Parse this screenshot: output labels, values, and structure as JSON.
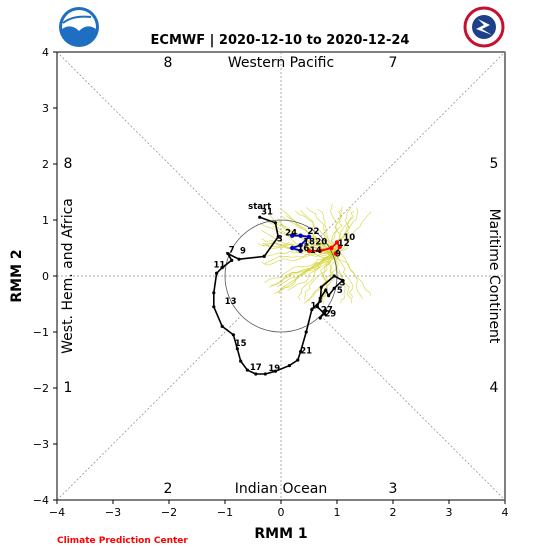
{
  "chart_data": {
    "type": "line",
    "title": "ECMWF | 2020-12-10 to 2020-12-24",
    "xlabel": "RMM 1",
    "ylabel": "RMM 2",
    "xlim": [
      -4,
      4
    ],
    "ylim": [
      -4,
      4
    ],
    "xticks": [
      -4,
      -3,
      -2,
      -1,
      0,
      1,
      2,
      3,
      4
    ],
    "yticks": [
      -4,
      -3,
      -2,
      -1,
      0,
      1,
      2,
      3,
      4
    ],
    "region_labels": {
      "top": "Western Pacific",
      "bottom": "Indian Ocean",
      "left": "West. Hem. and Africa",
      "right": "Maritime Continent"
    },
    "phase_labels": [
      {
        "phase": "1",
        "pos": "left-bottom"
      },
      {
        "phase": "2",
        "pos": "bottom-left"
      },
      {
        "phase": "3",
        "pos": "bottom-right"
      },
      {
        "phase": "4",
        "pos": "right-bottom"
      },
      {
        "phase": "5",
        "pos": "right-top"
      },
      {
        "phase": "6",
        "pos": "top-right"
      },
      {
        "phase": "7",
        "pos": "top-left"
      },
      {
        "phase": "8",
        "pos": "left-top"
      }
    ],
    "unit_circle_radius": 1,
    "observed_track": {
      "color": "#000000",
      "points": [
        [
          -0.38,
          1.05
        ],
        [
          -0.1,
          0.95
        ],
        [
          -0.05,
          0.7
        ],
        [
          -0.3,
          0.35
        ],
        [
          -0.75,
          0.3
        ],
        [
          -0.95,
          0.4
        ],
        [
          -0.88,
          0.28
        ],
        [
          -1.05,
          0.15
        ],
        [
          -1.15,
          0.05
        ],
        [
          -1.2,
          -0.3
        ],
        [
          -1.2,
          -0.55
        ],
        [
          -1.05,
          -0.9
        ],
        [
          -0.85,
          -1.05
        ],
        [
          -0.78,
          -1.3
        ],
        [
          -0.72,
          -1.52
        ],
        [
          -0.6,
          -1.68
        ],
        [
          -0.45,
          -1.75
        ],
        [
          -0.28,
          -1.75
        ],
        [
          -0.1,
          -1.7
        ],
        [
          0.15,
          -1.6
        ],
        [
          0.3,
          -1.5
        ],
        [
          0.35,
          -1.35
        ],
        [
          0.45,
          -1.0
        ],
        [
          0.55,
          -0.6
        ],
        [
          0.7,
          -0.45
        ],
        [
          0.72,
          -0.2
        ],
        [
          0.95,
          0.0
        ],
        [
          1.1,
          -0.08
        ],
        [
          0.95,
          -0.22
        ],
        [
          0.85,
          -0.35
        ],
        [
          0.8,
          -0.25
        ],
        [
          0.7,
          -0.4
        ],
        [
          0.65,
          -0.55
        ],
        [
          0.78,
          -0.68
        ],
        [
          0.8,
          -0.62
        ],
        [
          0.7,
          -0.75
        ]
      ],
      "labels": [
        {
          "text": "start",
          "x": -0.38,
          "y": 1.2
        },
        {
          "text": "31",
          "x": -0.25,
          "y": 1.1
        },
        {
          "text": "3",
          "x": -0.02,
          "y": 0.62
        },
        {
          "text": "7",
          "x": -0.88,
          "y": 0.42
        },
        {
          "text": "9",
          "x": -0.68,
          "y": 0.4
        },
        {
          "text": "11",
          "x": -1.1,
          "y": 0.15
        },
        {
          "text": "13",
          "x": -0.9,
          "y": -0.5
        },
        {
          "text": "15",
          "x": -0.72,
          "y": -1.25
        },
        {
          "text": "17",
          "x": -0.45,
          "y": -1.68
        },
        {
          "text": "19",
          "x": -0.12,
          "y": -1.7
        },
        {
          "text": "21",
          "x": 0.45,
          "y": -1.38
        },
        {
          "text": "3",
          "x": 1.1,
          "y": -0.17
        },
        {
          "text": "5",
          "x": 1.05,
          "y": -0.3
        },
        {
          "text": "1",
          "x": 0.58,
          "y": -0.58
        },
        {
          "text": "27",
          "x": 0.82,
          "y": -0.65
        },
        {
          "text": "29",
          "x": 0.88,
          "y": -0.72
        }
      ]
    },
    "forecast_ensemble_mean": {
      "segments": [
        {
          "color": "#0000cc",
          "points": [
            [
              0.2,
              0.72
            ],
            [
              0.35,
              0.72
            ],
            [
              0.5,
              0.7
            ],
            [
              0.35,
              0.55
            ],
            [
              0.2,
              0.5
            ],
            [
              0.35,
              0.45
            ]
          ]
        },
        {
          "color": "#ff0000",
          "points": [
            [
              0.5,
              0.45
            ],
            [
              0.7,
              0.45
            ],
            [
              0.9,
              0.5
            ],
            [
              1.0,
              0.6
            ],
            [
              1.05,
              0.52
            ],
            [
              0.98,
              0.4
            ]
          ]
        }
      ],
      "labels": [
        {
          "text": "24",
          "x": 0.18,
          "y": 0.72
        },
        {
          "text": "22",
          "x": 0.58,
          "y": 0.75
        },
        {
          "text": "18",
          "x": 0.5,
          "y": 0.56
        },
        {
          "text": "20",
          "x": 0.72,
          "y": 0.56
        },
        {
          "text": "16",
          "x": 0.4,
          "y": 0.45
        },
        {
          "text": "14",
          "x": 0.62,
          "y": 0.41
        },
        {
          "text": "10",
          "x": 1.22,
          "y": 0.64
        },
        {
          "text": "12",
          "x": 1.12,
          "y": 0.54
        },
        {
          "text": "9",
          "x": 1.02,
          "y": 0.35
        }
      ]
    },
    "ensemble_members": {
      "color": "#d4d43a",
      "count": 50
    }
  },
  "logos": {
    "left": "NOAA",
    "right": "NATIONAL WEATHER SERVICE"
  },
  "credit": "Climate Prediction Center"
}
